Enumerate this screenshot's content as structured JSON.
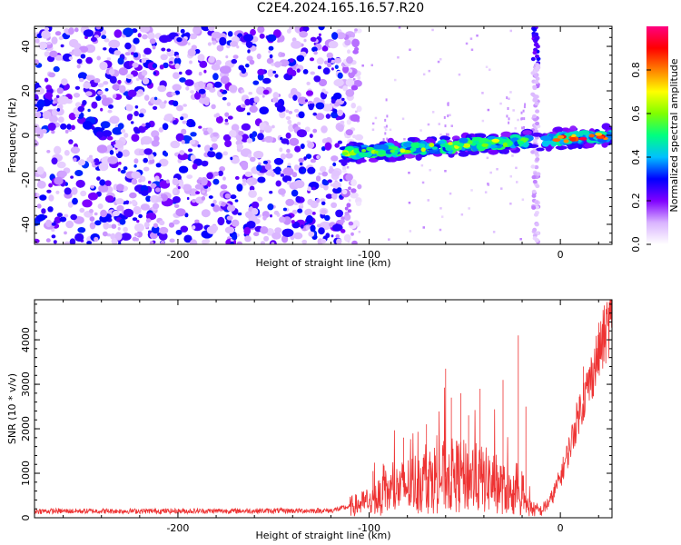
{
  "title": "C2E4.2024.165.16.57.R20",
  "chart_data": [
    {
      "type": "heatmap",
      "xlabel": "Height of straight line (km)",
      "ylabel": "Frequency (Hz)",
      "xlim": [
        -275,
        27
      ],
      "ylim": [
        -49,
        49
      ],
      "xticks": [
        -200,
        -100,
        0
      ],
      "xtick_labels": [
        "-200",
        "-100",
        "0"
      ],
      "yticks": [
        -40,
        -20,
        0,
        20,
        40
      ],
      "ytick_labels": [
        "-40",
        "-20",
        "0",
        "20",
        "40"
      ],
      "colorbar": {
        "label": "Normalized spectral amplitude",
        "range": [
          0.0,
          1.0
        ],
        "ticks": [
          0.0,
          0.2,
          0.4,
          0.6,
          0.8
        ],
        "tick_labels": [
          "0.0",
          "0.2",
          "0.4",
          "0.6",
          "0.8"
        ],
        "colors": [
          "#ffffff",
          "#d9b3ff",
          "#8000ff",
          "#0000ff",
          "#00c0ff",
          "#00ff80",
          "#80ff00",
          "#ffff00",
          "#ff8000",
          "#ff0000",
          "#ff0080"
        ]
      },
      "features": [
        {
          "description": "broadband noise",
          "x_range": [
            -275,
            -113
          ],
          "y_range": [
            -49,
            49
          ],
          "amplitude": 0.15
        },
        {
          "description": "signal trace",
          "x_range": [
            -113,
            27
          ],
          "y_start": -8,
          "y_end": 0,
          "amplitude_peak": 0.9
        },
        {
          "description": "vertical streak",
          "x": -13,
          "y_range": [
            -49,
            49
          ],
          "amplitude": 0.12
        }
      ]
    },
    {
      "type": "line",
      "xlabel": "Height of straight line (km)",
      "ylabel": "SNR (10 * v/v)",
      "xlim": [
        -275,
        27
      ],
      "ylim": [
        0,
        4900
      ],
      "xticks": [
        -200,
        -100,
        0
      ],
      "xtick_labels": [
        "-200",
        "-100",
        "0"
      ],
      "yticks": [
        0,
        1000,
        2000,
        3000,
        4000
      ],
      "ytick_labels": [
        "0",
        "1000",
        "2000",
        "3000",
        "4000"
      ],
      "line_color": "#ee3333",
      "series_profile": [
        {
          "x": -275,
          "y": 150
        },
        {
          "x": -200,
          "y": 150
        },
        {
          "x": -120,
          "y": 160
        },
        {
          "x": -105,
          "y": 300
        },
        {
          "x": -95,
          "y": 450
        },
        {
          "x": -85,
          "y": 650
        },
        {
          "x": -75,
          "y": 800
        },
        {
          "x": -65,
          "y": 900
        },
        {
          "x": -55,
          "y": 950
        },
        {
          "x": -45,
          "y": 900
        },
        {
          "x": -35,
          "y": 800
        },
        {
          "x": -25,
          "y": 500
        },
        {
          "x": -15,
          "y": 200
        },
        {
          "x": -10,
          "y": 150
        },
        {
          "x": -5,
          "y": 400
        },
        {
          "x": 0,
          "y": 900
        },
        {
          "x": 5,
          "y": 1600
        },
        {
          "x": 10,
          "y": 2400
        },
        {
          "x": 15,
          "y": 3000
        },
        {
          "x": 20,
          "y": 3700
        },
        {
          "x": 25,
          "y": 4300
        },
        {
          "x": 27,
          "y": 4600
        }
      ],
      "spikes": [
        {
          "x": -98,
          "y": 1050
        },
        {
          "x": -82,
          "y": 1800
        },
        {
          "x": -70,
          "y": 2100
        },
        {
          "x": -60,
          "y": 3350
        },
        {
          "x": -57,
          "y": 2700
        },
        {
          "x": -52,
          "y": 2800
        },
        {
          "x": -48,
          "y": 2300
        },
        {
          "x": -42,
          "y": 2900
        },
        {
          "x": -30,
          "y": 3100
        },
        {
          "x": -22,
          "y": 4100
        },
        {
          "x": -18,
          "y": 2500
        },
        {
          "x": 12,
          "y": 3400
        },
        {
          "x": 26,
          "y": 4800
        }
      ]
    }
  ]
}
